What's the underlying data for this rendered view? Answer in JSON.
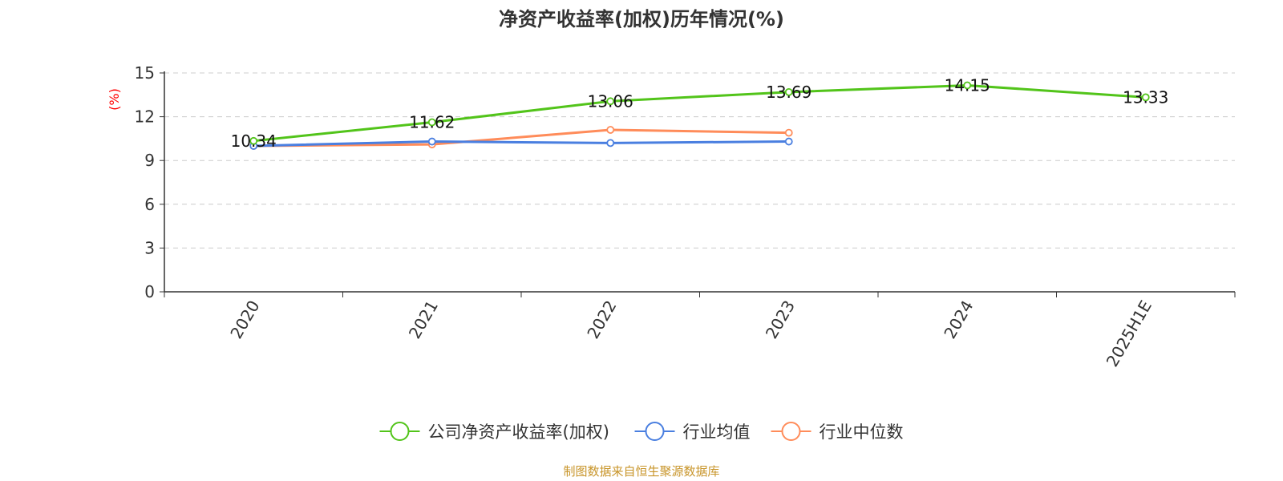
{
  "chart_data": {
    "type": "line",
    "title": "净资产收益率(加权)历年情况(%)",
    "ylabel": "(%)",
    "categories": [
      "2020",
      "2021",
      "2022",
      "2023",
      "2024",
      "2025H1E"
    ],
    "ylim": [
      0,
      15
    ],
    "yticks": [
      "0",
      "3",
      "6",
      "9",
      "12",
      "15"
    ],
    "grid": true,
    "legend_position": "bottom",
    "series": [
      {
        "name": "公司净资产收益率(加权)",
        "color": "#52c41a",
        "values": [
          10.34,
          11.62,
          13.06,
          13.69,
          14.15,
          13.33
        ],
        "labels": [
          "10.34",
          "11.62",
          "13.06",
          "13.69",
          "14.15",
          "13.33"
        ]
      },
      {
        "name": "行业均值",
        "color": "#4a7fe0",
        "values": [
          10.0,
          10.3,
          10.2,
          10.3,
          null,
          null
        ]
      },
      {
        "name": "行业中位数",
        "color": "#ff8c5a",
        "values": [
          10.0,
          10.1,
          11.1,
          10.9,
          null,
          null
        ]
      }
    ],
    "source": "制图数据来自恒生聚源数据库"
  }
}
